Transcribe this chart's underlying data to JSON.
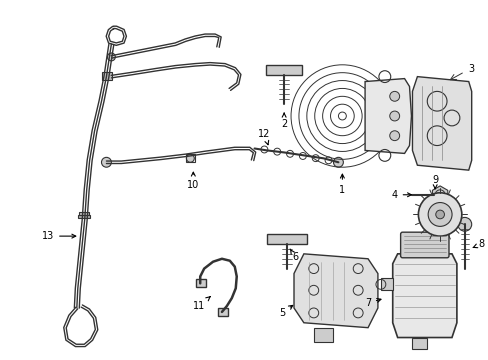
{
  "bg_color": "#ffffff",
  "line_color": "#333333",
  "fig_width": 4.89,
  "fig_height": 3.6,
  "dpi": 100
}
